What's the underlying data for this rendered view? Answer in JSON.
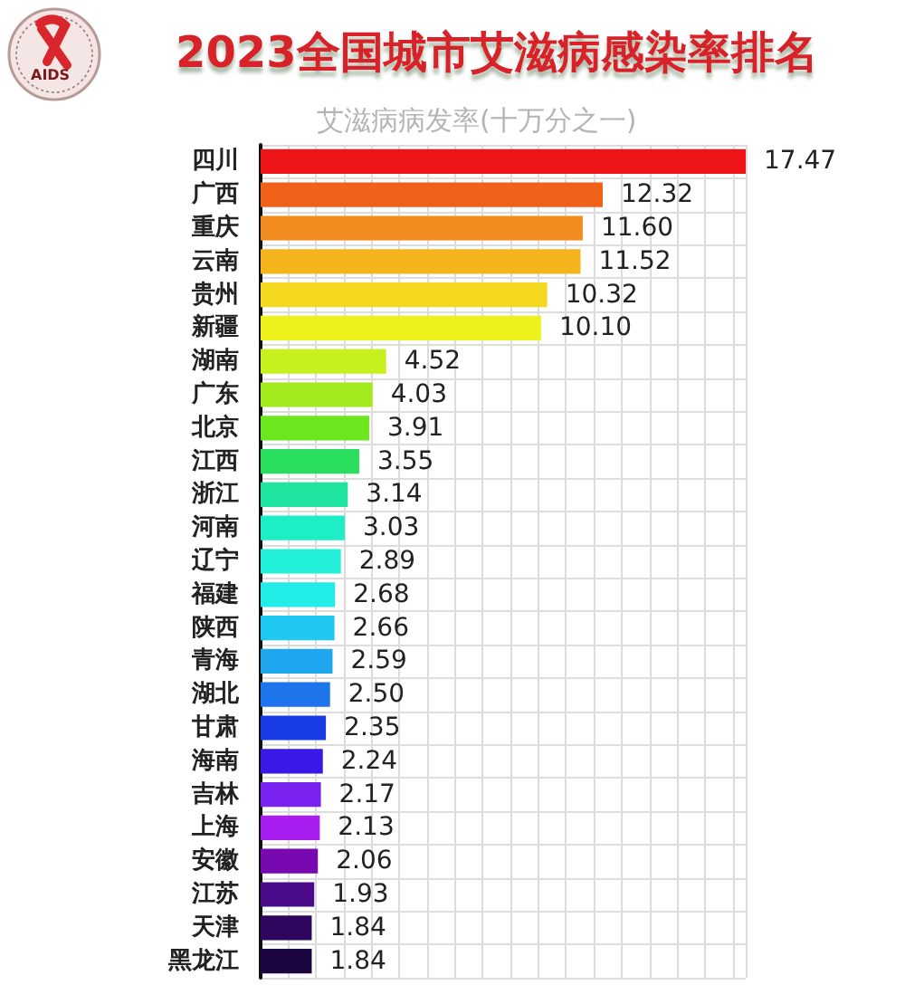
{
  "chart_data": {
    "type": "bar",
    "orientation": "horizontal",
    "title": "2023全国城市艾滋病感染率排名",
    "subtitle": "艾滋病病发率(十万分之一)",
    "annotations": [
      "AIDS"
    ],
    "categories": [
      "四川",
      "广西",
      "重庆",
      "云南",
      "贵州",
      "新疆",
      "湖南",
      "广东",
      "北京",
      "江西",
      "浙江",
      "河南",
      "辽宁",
      "福建",
      "陕西",
      "青海",
      "湖北",
      "甘肃",
      "海南",
      "吉林",
      "上海",
      "安徽",
      "江苏",
      "天津",
      "黑龙江"
    ],
    "values": [
      17.47,
      12.32,
      11.6,
      11.52,
      10.32,
      10.1,
      4.52,
      4.03,
      3.91,
      3.55,
      3.14,
      3.03,
      2.89,
      2.68,
      2.66,
      2.59,
      2.5,
      2.35,
      2.24,
      2.17,
      2.13,
      2.06,
      1.93,
      1.84,
      1.84
    ],
    "value_labels": [
      "17.47",
      "12.32",
      "11.60",
      "11.52",
      "10.32",
      "10.10",
      "4.52",
      "4.03",
      "3.91",
      "3.55",
      "3.14",
      "3.03",
      "2.89",
      "2.68",
      "2.66",
      "2.59",
      "2.50",
      "2.35",
      "2.24",
      "2.17",
      "2.13",
      "2.06",
      "1.93",
      "1.84",
      "1.84"
    ],
    "colors": [
      "#ee1418",
      "#f0621a",
      "#f28c1e",
      "#f4b41c",
      "#f4d81e",
      "#eef21c",
      "#c6f01e",
      "#a2ea1c",
      "#6ce61e",
      "#28de5c",
      "#1ee4a0",
      "#1eeec6",
      "#22f0d8",
      "#22ece6",
      "#1ec8f0",
      "#1ea6ee",
      "#1e74ea",
      "#1a3ce6",
      "#3a18e6",
      "#7a22f0",
      "#a81ef0",
      "#7808b0",
      "#4a0a8a",
      "#2e0660",
      "#1c0640"
    ],
    "grid": true
  }
}
